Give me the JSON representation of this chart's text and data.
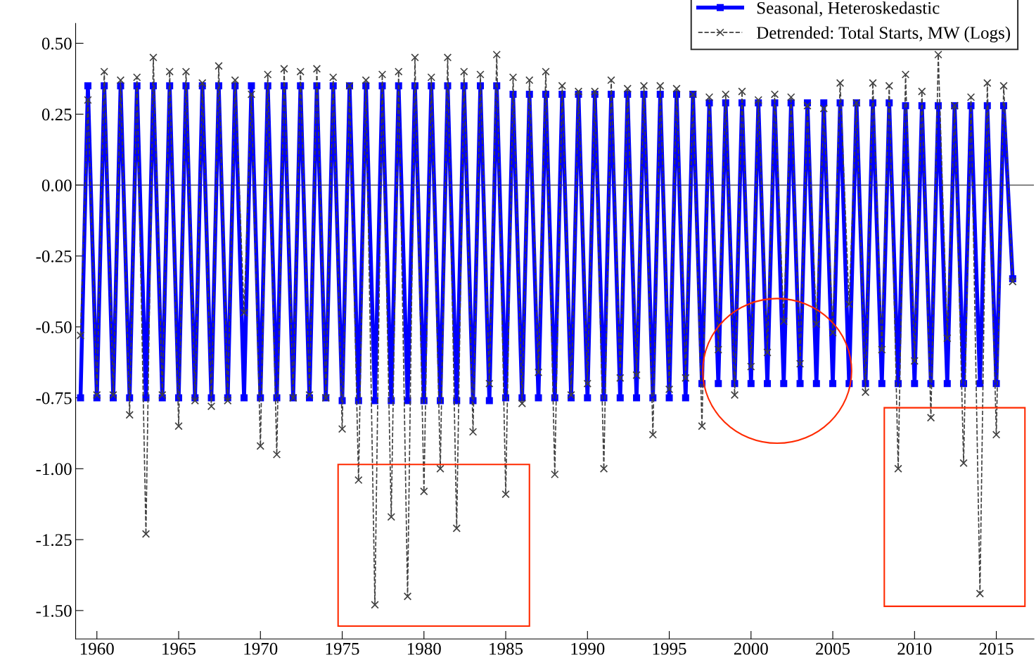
{
  "chart_data": {
    "type": "line",
    "x": [
      1959.0,
      1959.45,
      1960.0,
      1960.45,
      1961.0,
      1961.45,
      1962.0,
      1962.45,
      1963.0,
      1963.45,
      1964.0,
      1964.45,
      1965.0,
      1965.45,
      1966.0,
      1966.45,
      1967.0,
      1967.45,
      1968.0,
      1968.45,
      1969.0,
      1969.45,
      1970.0,
      1970.45,
      1971.0,
      1971.45,
      1972.0,
      1972.45,
      1973.0,
      1973.45,
      1974.0,
      1974.45,
      1975.0,
      1975.45,
      1976.0,
      1976.45,
      1977.0,
      1977.45,
      1978.0,
      1978.45,
      1979.0,
      1979.45,
      1980.0,
      1980.45,
      1981.0,
      1981.45,
      1982.0,
      1982.45,
      1983.0,
      1983.45,
      1984.0,
      1984.45,
      1985.0,
      1985.45,
      1986.0,
      1986.45,
      1987.0,
      1987.45,
      1988.0,
      1988.45,
      1989.0,
      1989.45,
      1990.0,
      1990.45,
      1991.0,
      1991.45,
      1992.0,
      1992.45,
      1993.0,
      1993.45,
      1994.0,
      1994.45,
      1995.0,
      1995.45,
      1996.0,
      1996.45,
      1997.0,
      1997.45,
      1998.0,
      1998.45,
      1999.0,
      1999.45,
      2000.0,
      2000.45,
      2001.0,
      2001.45,
      2002.0,
      2002.45,
      2003.0,
      2003.45,
      2004.0,
      2004.45,
      2005.0,
      2005.45,
      2006.0,
      2006.45,
      2007.0,
      2007.45,
      2008.0,
      2008.45,
      2009.0,
      2009.45,
      2010.0,
      2010.45,
      2011.0,
      2011.45,
      2012.0,
      2012.45,
      2013.0,
      2013.45,
      2014.0,
      2014.45,
      2015.0,
      2015.45,
      2016.0
    ],
    "series": [
      {
        "name": "Seasonal, Heteroskedastic",
        "color": "#0000ff",
        "marker": "square",
        "line_style": "solid",
        "values": [
          -0.75,
          0.35,
          -0.75,
          0.35,
          -0.75,
          0.35,
          -0.75,
          0.35,
          -0.75,
          0.35,
          -0.75,
          0.35,
          -0.75,
          0.35,
          -0.75,
          0.35,
          -0.75,
          0.35,
          -0.75,
          0.35,
          -0.75,
          0.35,
          -0.75,
          0.35,
          -0.75,
          0.35,
          -0.75,
          0.35,
          -0.75,
          0.35,
          -0.75,
          0.35,
          -0.76,
          0.35,
          -0.76,
          0.35,
          -0.76,
          0.35,
          -0.76,
          0.35,
          -0.76,
          0.35,
          -0.76,
          0.35,
          -0.76,
          0.35,
          -0.76,
          0.35,
          -0.76,
          0.35,
          -0.76,
          0.35,
          -0.75,
          0.32,
          -0.75,
          0.32,
          -0.75,
          0.32,
          -0.75,
          0.32,
          -0.75,
          0.32,
          -0.75,
          0.32,
          -0.75,
          0.32,
          -0.75,
          0.32,
          -0.75,
          0.32,
          -0.75,
          0.32,
          -0.75,
          0.32,
          -0.75,
          0.32,
          -0.7,
          0.29,
          -0.7,
          0.29,
          -0.7,
          0.29,
          -0.7,
          0.29,
          -0.7,
          0.29,
          -0.7,
          0.29,
          -0.7,
          0.29,
          -0.7,
          0.29,
          -0.7,
          0.29,
          -0.7,
          0.29,
          -0.7,
          0.29,
          -0.7,
          0.29,
          -0.7,
          0.28,
          -0.7,
          0.28,
          -0.7,
          0.28,
          -0.7,
          0.28,
          -0.7,
          0.28,
          -0.7,
          0.28,
          -0.7,
          0.28,
          -0.33
        ]
      },
      {
        "name": "Detrended: Total Starts, MW (Logs)",
        "color": "#404040",
        "marker": "cross",
        "line_style": "dashed",
        "values": [
          -0.53,
          0.3,
          -0.74,
          0.4,
          -0.74,
          0.37,
          -0.81,
          0.38,
          -1.23,
          0.45,
          -0.74,
          0.4,
          -0.85,
          0.4,
          -0.76,
          0.36,
          -0.78,
          0.42,
          -0.76,
          0.37,
          -0.45,
          0.32,
          -0.92,
          0.39,
          -0.95,
          0.41,
          -0.75,
          0.4,
          -0.74,
          0.41,
          -0.75,
          0.38,
          -0.86,
          0.35,
          -1.04,
          0.37,
          -1.48,
          0.39,
          -1.17,
          0.4,
          -1.45,
          0.45,
          -1.08,
          0.38,
          -1.0,
          0.45,
          -1.21,
          0.4,
          -0.87,
          0.39,
          -0.7,
          0.46,
          -1.09,
          0.38,
          -0.77,
          0.37,
          -0.66,
          0.4,
          -1.02,
          0.35,
          -0.74,
          0.33,
          -0.7,
          0.33,
          -1.0,
          0.37,
          -0.68,
          0.34,
          -0.67,
          0.35,
          -0.88,
          0.35,
          -0.72,
          0.34,
          -0.68,
          0.32,
          -0.85,
          0.31,
          -0.58,
          0.32,
          -0.74,
          0.33,
          -0.64,
          0.3,
          -0.59,
          0.32,
          -0.48,
          0.31,
          -0.63,
          0.28,
          -0.49,
          0.27,
          -0.52,
          0.36,
          -0.42,
          0.29,
          -0.73,
          0.36,
          -0.58,
          0.35,
          -1.0,
          0.39,
          -0.62,
          0.33,
          -0.82,
          0.46,
          -0.54,
          0.28,
          -0.98,
          0.31,
          -1.44,
          0.36,
          -0.88,
          0.35,
          -0.34
        ]
      }
    ],
    "xlim": [
      1958.7,
      2017.3
    ],
    "xticks": [
      1960,
      1965,
      1970,
      1975,
      1980,
      1985,
      1990,
      1995,
      2000,
      2005,
      2010,
      2015
    ],
    "ylim": [
      -1.6,
      0.57
    ],
    "yticks": [
      {
        "value": -1.5,
        "label": "-1.50"
      },
      {
        "value": -1.25,
        "label": "-1.25"
      },
      {
        "value": -1.0,
        "label": "-1.00"
      },
      {
        "value": -0.75,
        "label": "-0.75"
      },
      {
        "value": -0.5,
        "label": "-0.50"
      },
      {
        "value": -0.25,
        "label": "-0.25"
      },
      {
        "value": 0,
        "label": "0.00"
      },
      {
        "value": 0.25,
        "label": "0.25"
      },
      {
        "value": 0.5,
        "label": "0.50"
      }
    ],
    "ref_lines": [
      {
        "axis": "y",
        "value": 0,
        "color": "#404040"
      }
    ],
    "grid": false,
    "legend": "top right"
  }
}
